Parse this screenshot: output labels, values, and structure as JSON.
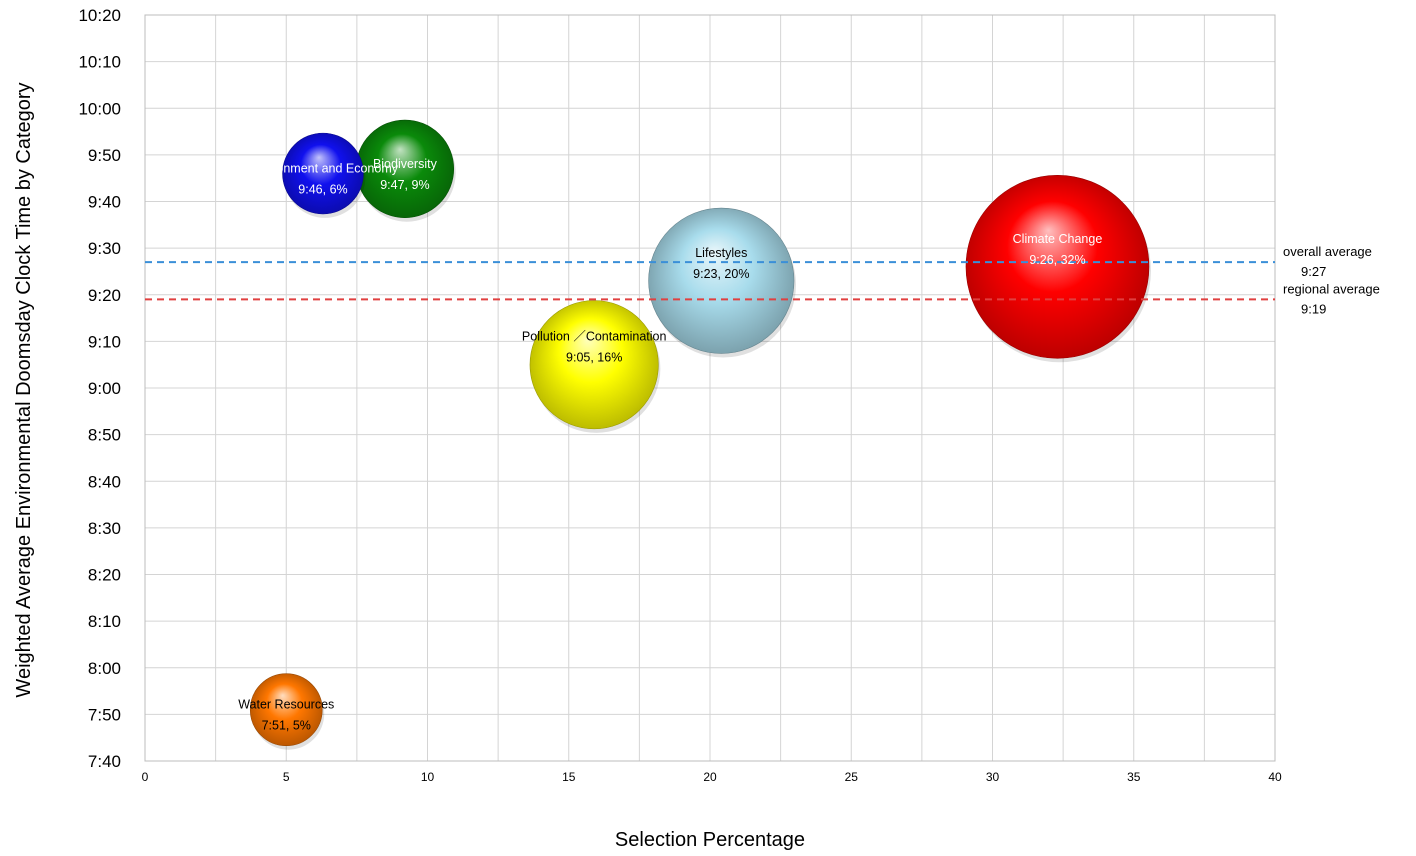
{
  "chart_data": {
    "type": "bubble",
    "xlabel": "Selection Percentage",
    "ylabel": "Weighted Average Environmental Doomsday Clock Time by Category",
    "xlim": [
      0,
      40
    ],
    "x_ticks": [
      0,
      5,
      10,
      15,
      20,
      25,
      30,
      35,
      40
    ],
    "x_tick_labels": [
      "0",
      "5",
      "10",
      "15",
      "20",
      "25",
      "30",
      "35",
      "40"
    ],
    "ylim_minutes": [
      460,
      620
    ],
    "y_tick_minutes": [
      460,
      470,
      480,
      490,
      500,
      510,
      520,
      530,
      540,
      550,
      560,
      570,
      580,
      590,
      600,
      610,
      620
    ],
    "y_tick_labels": [
      "7:40",
      "7:50",
      "8:00",
      "8:10",
      "8:20",
      "8:30",
      "8:40",
      "8:50",
      "9:00",
      "9:10",
      "9:20",
      "9:30",
      "9:40",
      "9:50",
      "10:00",
      "10:10",
      "10:20"
    ],
    "grid": true,
    "series": [
      {
        "name": "Climate Change",
        "value_label": "9:26, 32%",
        "x": 32.3,
        "y_minutes": 566,
        "color": "#ff0000",
        "text_color": "#ffffff"
      },
      {
        "name": "Lifestyles",
        "value_label": "9:23, 20%",
        "x": 20.4,
        "y_minutes": 563,
        "color": "#a8dcec",
        "text_color": "#000000"
      },
      {
        "name": "Pollution ／Contamination",
        "value_label": "9:05, 16%",
        "x": 15.9,
        "y_minutes": 545,
        "color": "#ffff00",
        "text_color": "#000000"
      },
      {
        "name": "Biodiversity",
        "value_label": "9:47, 9%",
        "x": 9.2,
        "y_minutes": 587,
        "color": "#0a8a0a",
        "text_color": "#ffffff"
      },
      {
        "name": "Environment and Economy",
        "value_label": "9:46, 6%",
        "x": 6.3,
        "y_minutes": 586,
        "color": "#1010ee",
        "text_color": "#ffffff"
      },
      {
        "name": "Water Resources",
        "value_label": "7:51, 5%",
        "x": 5.0,
        "y_minutes": 471,
        "color": "#ff7700",
        "text_color": "#000000"
      }
    ],
    "reference_lines": [
      {
        "name": "overall average",
        "value_label": "9:27",
        "y_minutes": 567,
        "color": "#3a8fd8"
      },
      {
        "name": "regional average",
        "value_label": "9:19",
        "y_minutes": 559,
        "color": "#e04040"
      }
    ]
  }
}
